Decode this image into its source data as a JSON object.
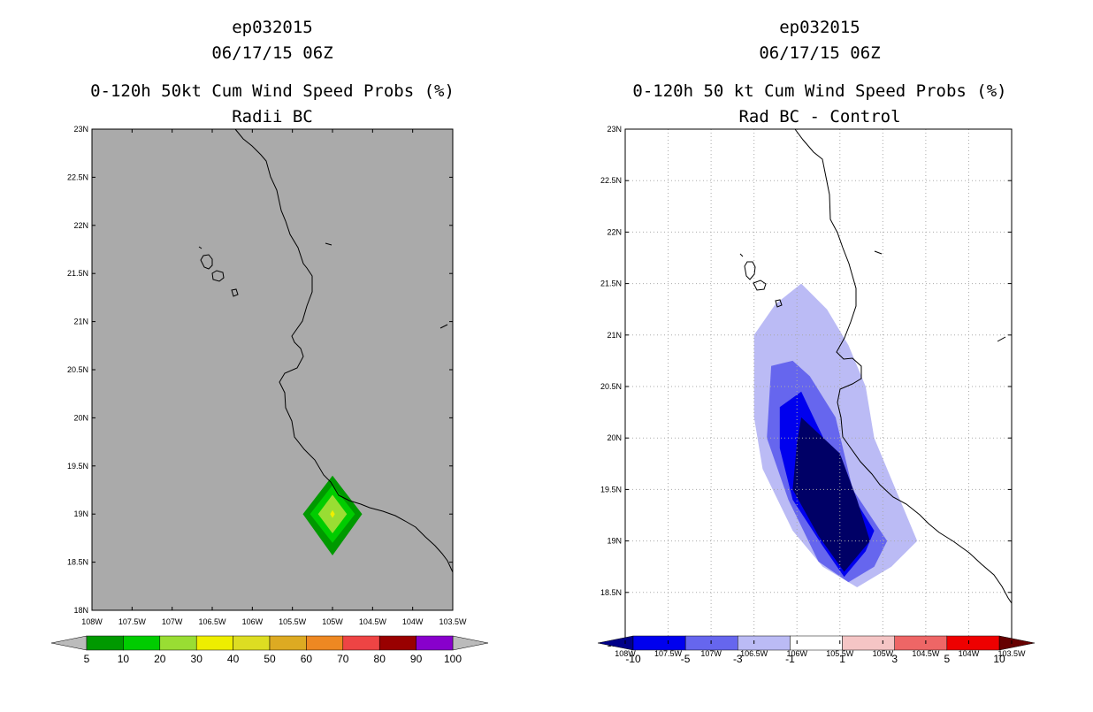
{
  "charts": [
    {
      "title_lines": [
        "ep032015",
        "06/17/15 06Z",
        "0-120h 50kt Cum Wind Speed Probs (%)",
        "Radii BC"
      ],
      "colors": {
        "background": "#aaaaaa",
        "coast": "#000000"
      },
      "colorbar": {
        "labels": [
          "5",
          "10",
          "20",
          "30",
          "40",
          "50",
          "60",
          "70",
          "80",
          "90",
          "100"
        ],
        "colors": [
          "#009900",
          "#00cc00",
          "#99dd33",
          "#eeee00",
          "#dddd22",
          "#ddaa22",
          "#ee8822",
          "#ee4444",
          "#990000",
          "#8800cc"
        ],
        "left_arrow": "#bbbbbb",
        "right_arrow": "#bbbbbb"
      }
    },
    {
      "title_lines": [
        "ep032015",
        "06/17/15 06Z",
        "0-120h 50 kt Cum Wind Speed Probs (%)",
        "Rad BC - Control"
      ],
      "colors": {
        "background": "#ffffff",
        "coast": "#000000",
        "grid": "#aaaaaa"
      },
      "colorbar": {
        "labels": [
          "-10",
          "-5",
          "-3",
          "-1",
          "1",
          "3",
          "5",
          "10"
        ],
        "colors": [
          "#0000ee",
          "#6666ee",
          "#bbbbf5",
          "#ffffff",
          "#f5c5c5",
          "#ee6666",
          "#ee0000"
        ],
        "left_arrow": "#000088",
        "right_arrow": "#660000"
      }
    }
  ],
  "chart_data": [
    {
      "type": "contour-map",
      "title": "ep032015 06/17/15 06Z 0-120h 50kt Cum Wind Speed Probs (%) Radii BC",
      "x_ticks": [
        "108W",
        "107.5W",
        "107W",
        "106.5W",
        "106W",
        "105.5W",
        "105W",
        "104.5W",
        "104W",
        "103.5W"
      ],
      "y_ticks": [
        "18N",
        "18.5N",
        "19N",
        "19.5N",
        "20N",
        "20.5N",
        "21N",
        "21.5N",
        "22N",
        "22.5N",
        "23N"
      ],
      "xlim": [
        -108,
        -103.5
      ],
      "ylim": [
        18,
        23
      ],
      "grid": false,
      "levels": [
        5,
        10,
        20,
        30,
        40,
        50,
        60,
        70,
        80,
        90,
        100
      ],
      "fields": [
        {
          "level": 5,
          "color": "#009900",
          "polygon": [
            [
              -105,
              19.4
            ],
            [
              -104.63,
              19
            ],
            [
              -105,
              18.57
            ],
            [
              -105.37,
              19
            ]
          ]
        },
        {
          "level": 10,
          "color": "#00cc00",
          "polygon": [
            [
              -105,
              19.3
            ],
            [
              -104.72,
              19
            ],
            [
              -105,
              18.7
            ],
            [
              -105.28,
              19
            ]
          ]
        },
        {
          "level": 20,
          "color": "#99dd33",
          "polygon": [
            [
              -105,
              19.2
            ],
            [
              -104.82,
              19
            ],
            [
              -105,
              18.8
            ],
            [
              -105.18,
              19
            ]
          ]
        },
        {
          "level": 30,
          "color": "#eeee00",
          "polygon": [
            [
              -105,
              19.04
            ],
            [
              -104.97,
              19
            ],
            [
              -105,
              18.96
            ],
            [
              -105.03,
              19
            ]
          ]
        }
      ]
    },
    {
      "type": "contour-map",
      "title": "ep032015 06/17/15 06Z 0-120h 50 kt Cum Wind Speed Probs (%) Rad BC - Control",
      "x_ticks": [
        "108W",
        "107.5W",
        "107W",
        "106.5W",
        "106W",
        "105.5W",
        "105W",
        "104.5W",
        "104W",
        "103.5W"
      ],
      "y_ticks": [
        "18N",
        "18.5N",
        "19N",
        "19.5N",
        "20N",
        "20.5N",
        "21N",
        "21.5N",
        "22N",
        "22.5N",
        "23N"
      ],
      "xlim": [
        -108,
        -103.5
      ],
      "ylim": [
        18,
        23
      ],
      "grid": true,
      "levels": [
        -10,
        -5,
        -3,
        -1,
        1,
        3,
        5,
        10
      ],
      "fields": [
        {
          "level": -1,
          "color": "#bbbbf5",
          "polygon": [
            [
              -106.5,
              21
            ],
            [
              -106.25,
              21.3
            ],
            [
              -105.95,
              21.5
            ],
            [
              -105.65,
              21.25
            ],
            [
              -105.4,
              20.9
            ],
            [
              -105.2,
              20.5
            ],
            [
              -105.1,
              20
            ],
            [
              -104.9,
              19.6
            ],
            [
              -104.6,
              19
            ],
            [
              -104.9,
              18.75
            ],
            [
              -105.3,
              18.55
            ],
            [
              -105.7,
              18.75
            ],
            [
              -106.05,
              19.1
            ],
            [
              -106.4,
              19.7
            ],
            [
              -106.5,
              20.2
            ]
          ]
        },
        {
          "level": -3,
          "color": "#6666ee",
          "polygon": [
            [
              -106.3,
              20.7
            ],
            [
              -106.05,
              20.75
            ],
            [
              -105.85,
              20.6
            ],
            [
              -105.55,
              20.2
            ],
            [
              -105.35,
              19.5
            ],
            [
              -104.95,
              19
            ],
            [
              -105.1,
              18.75
            ],
            [
              -105.4,
              18.6
            ],
            [
              -105.75,
              18.8
            ],
            [
              -106.1,
              19.4
            ],
            [
              -106.35,
              20
            ]
          ]
        },
        {
          "level": -5,
          "color": "#0000ee",
          "polygon": [
            [
              -106.2,
              20.3
            ],
            [
              -105.95,
              20.45
            ],
            [
              -105.75,
              20.1
            ],
            [
              -105.4,
              19.5
            ],
            [
              -105.1,
              19.1
            ],
            [
              -105.2,
              18.9
            ],
            [
              -105.45,
              18.65
            ],
            [
              -105.7,
              18.95
            ],
            [
              -106.05,
              19.4
            ],
            [
              -106.2,
              19.9
            ]
          ]
        },
        {
          "level": -10,
          "color": "#000066",
          "polygon": [
            [
              -106,
              19.95
            ],
            [
              -105.95,
              20.2
            ],
            [
              -105.5,
              19.85
            ],
            [
              -105.3,
              19.4
            ],
            [
              -105.15,
              19
            ],
            [
              -105.45,
              18.7
            ],
            [
              -105.75,
              19.05
            ],
            [
              -106.05,
              19.5
            ]
          ]
        }
      ]
    }
  ]
}
